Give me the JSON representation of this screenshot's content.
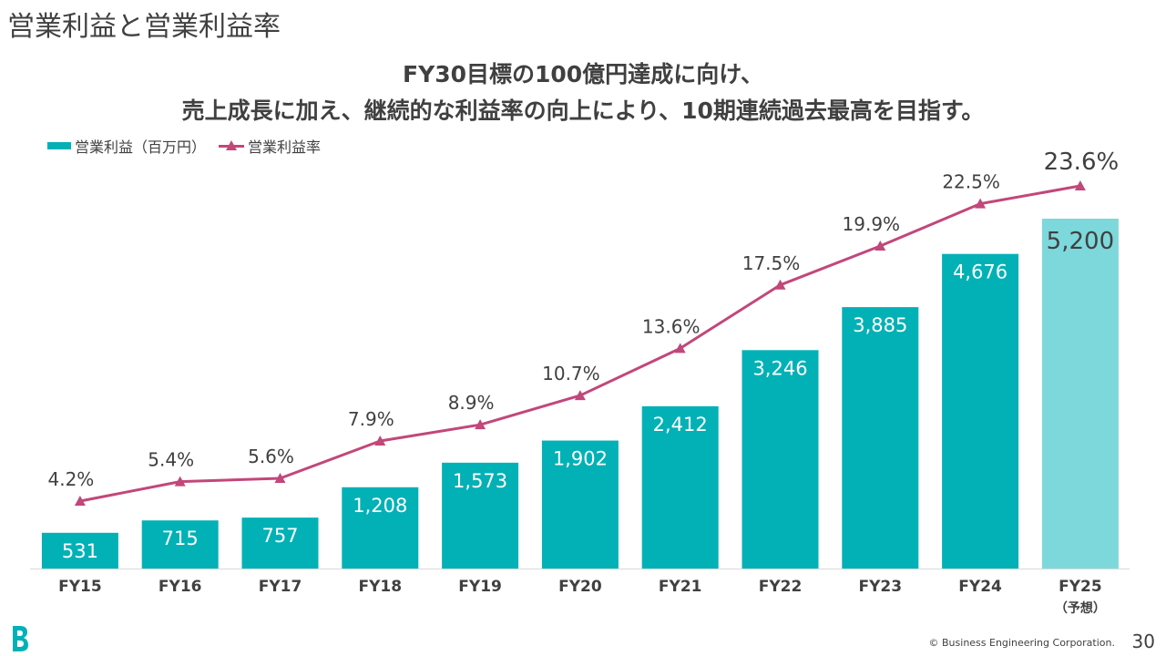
{
  "slide": {
    "title": "営業利益と営業利益率",
    "headline_line1": "FY30目標の100億円達成に向け、",
    "headline_line2": "売上成長に加え、継続的な利益率の向上により、10期連続過去最高を目指す。",
    "copyright": "© Business Engineering Corporation.",
    "page_number": "30"
  },
  "colors": {
    "bar": "#02B1B6",
    "bar_forecast": "#7DD8DB",
    "line": "#C2477A",
    "text": "#404040",
    "logo": "#02B1B6"
  },
  "chart_data": {
    "type": "bar",
    "categories": [
      "FY15",
      "FY16",
      "FY17",
      "FY18",
      "FY19",
      "FY20",
      "FY21",
      "FY22",
      "FY23",
      "FY24",
      "FY25"
    ],
    "category_sublabels": [
      "",
      "",
      "",
      "",
      "",
      "",
      "",
      "",
      "",
      "",
      "（予想）"
    ],
    "series": [
      {
        "name": "営業利益（百万円）",
        "type": "bar",
        "values": [
          531,
          715,
          757,
          1208,
          1573,
          1902,
          2412,
          3246,
          3885,
          4676,
          5200
        ],
        "labels": [
          "531",
          "715",
          "757",
          "1,208",
          "1,573",
          "1,902",
          "2,412",
          "3,246",
          "3,885",
          "4,676",
          "5,200"
        ],
        "forecast_index": 10
      },
      {
        "name": "営業利益率",
        "type": "line",
        "values": [
          4.2,
          5.4,
          5.6,
          7.9,
          8.9,
          10.7,
          13.6,
          17.5,
          19.9,
          22.5,
          23.6
        ],
        "labels": [
          "4.2%",
          "5.4%",
          "5.6%",
          "7.9%",
          "8.9%",
          "10.7%",
          "13.6%",
          "17.5%",
          "19.9%",
          "22.5%",
          "23.6%"
        ]
      }
    ],
    "legend_position": "top-left",
    "grid": false
  }
}
